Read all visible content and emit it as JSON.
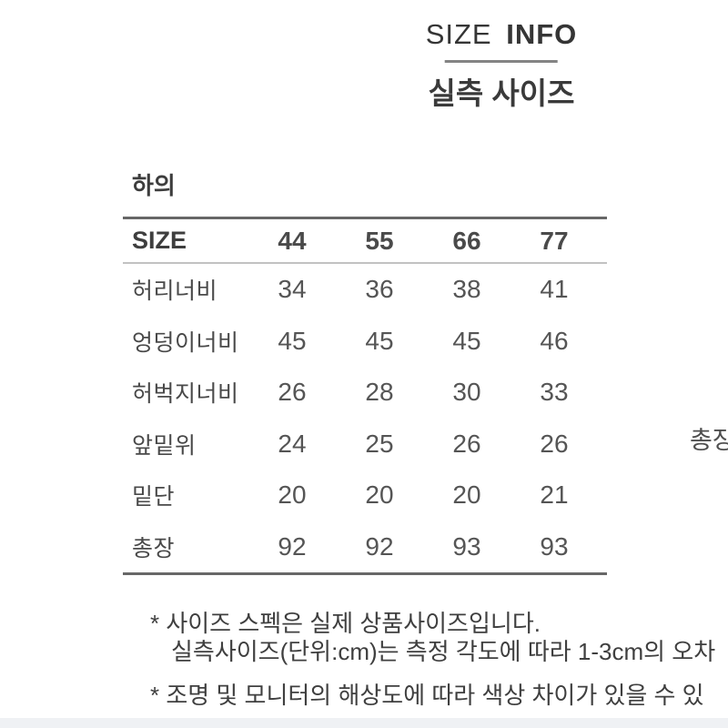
{
  "header": {
    "title_word1": "SIZE",
    "title_word2": "INFO",
    "subtitle": "실측 사이즈"
  },
  "section": {
    "label": "하의"
  },
  "table": {
    "header": {
      "label": "SIZE",
      "sizes": [
        "44",
        "55",
        "66",
        "77"
      ]
    },
    "rows": [
      {
        "label": "허리너비",
        "values": [
          "34",
          "36",
          "38",
          "41"
        ]
      },
      {
        "label": "엉덩이너비",
        "values": [
          "45",
          "45",
          "45",
          "46"
        ]
      },
      {
        "label": "허벅지너비",
        "values": [
          "26",
          "28",
          "30",
          "33"
        ]
      },
      {
        "label": "앞밑위",
        "values": [
          "24",
          "25",
          "26",
          "26"
        ]
      },
      {
        "label": "밑단",
        "values": [
          "20",
          "20",
          "20",
          "21"
        ]
      },
      {
        "label": "총장",
        "values": [
          "92",
          "92",
          "93",
          "93"
        ]
      }
    ]
  },
  "notes": {
    "line1": "* 사이즈 스펙은 실제 상품사이즈입니다.",
    "line2": "실측사이즈(단위:cm)는 측정 각도에 따라 1-3cm의 오차",
    "line3": "* 조명 및 모니터의 해상도에 따라 색상 차이가 있을 수 있"
  },
  "side_label": "총장",
  "colors": {
    "text_dark": "#3a3a3a",
    "text_gray": "#555555",
    "border_dark": "#676767",
    "border_light": "#c2c2c2",
    "bottom_band": "#eff1f4"
  }
}
